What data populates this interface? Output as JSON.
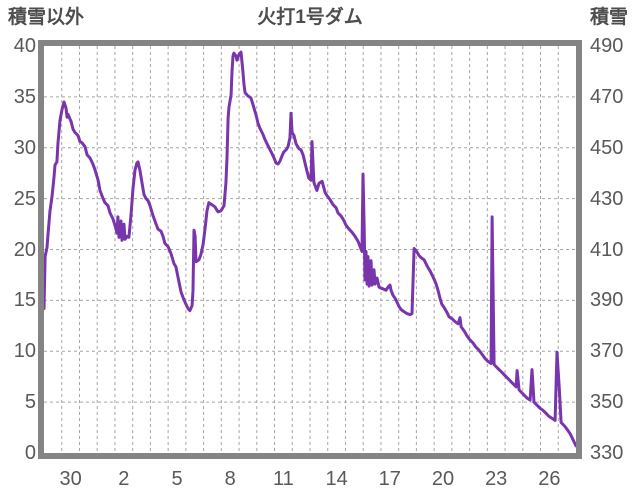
{
  "header": {
    "left_axis_title": "積雪以外",
    "title": "火打1号ダム",
    "right_axis_title": "積雪"
  },
  "chart_data": {
    "type": "line",
    "title": "火打1号ダム",
    "legend": "none",
    "grid": "dashed gray, vertical line each day, horizontal line each left-axis step",
    "x_axis": {
      "range_days": [
        0,
        30
      ],
      "gridline_interval_days": 1,
      "tick_labels": [
        "30",
        "2",
        "5",
        "8",
        "11",
        "14",
        "17",
        "20",
        "23",
        "26"
      ],
      "tick_label_center_days": [
        1.5,
        4.5,
        7.5,
        10.5,
        13.5,
        16.5,
        19.5,
        22.5,
        25.5,
        28.5
      ]
    },
    "y_axis_left": {
      "title": "積雪以外",
      "range": [
        0,
        40
      ],
      "tick_interval": 5,
      "ticks": [
        40,
        35,
        30,
        25,
        20,
        15,
        10,
        5,
        0
      ]
    },
    "y_axis_right": {
      "title": "積雪",
      "range": [
        330,
        490
      ],
      "tick_interval": 20,
      "ticks": [
        490,
        470,
        450,
        430,
        410,
        390,
        370,
        350,
        330
      ]
    },
    "series": [
      {
        "name": "積雪",
        "color": "#7935ac",
        "axis_note": "plotted values given in left-axis units; right axis equivalent = 330 + 4 × value",
        "points": [
          [
            0.0,
            14.2
          ],
          [
            0.06,
            19.3
          ],
          [
            0.17,
            20.2
          ],
          [
            0.23,
            21.6
          ],
          [
            0.34,
            23.8
          ],
          [
            0.45,
            25.2
          ],
          [
            0.56,
            27.0
          ],
          [
            0.62,
            28.3
          ],
          [
            0.73,
            28.6
          ],
          [
            0.79,
            30.5
          ],
          [
            0.9,
            32.7
          ],
          [
            1.02,
            33.8
          ],
          [
            1.13,
            34.5
          ],
          [
            1.24,
            33.9
          ],
          [
            1.3,
            33.0
          ],
          [
            1.35,
            33.3
          ],
          [
            1.47,
            32.8
          ],
          [
            1.52,
            32.6
          ],
          [
            1.64,
            31.8
          ],
          [
            1.75,
            31.5
          ],
          [
            1.92,
            31.2
          ],
          [
            2.03,
            30.6
          ],
          [
            2.14,
            30.5
          ],
          [
            2.31,
            30.1
          ],
          [
            2.43,
            29.3
          ],
          [
            2.59,
            29.0
          ],
          [
            2.76,
            28.4
          ],
          [
            2.88,
            27.8
          ],
          [
            3.05,
            26.8
          ],
          [
            3.16,
            25.8
          ],
          [
            3.33,
            25.0
          ],
          [
            3.44,
            24.6
          ],
          [
            3.61,
            24.3
          ],
          [
            3.72,
            23.6
          ],
          [
            3.89,
            23.0
          ],
          [
            4.0,
            22.4
          ],
          [
            4.12,
            21.6
          ],
          [
            4.17,
            23.2
          ],
          [
            4.23,
            21.2
          ],
          [
            4.34,
            22.8
          ],
          [
            4.4,
            20.9
          ],
          [
            4.51,
            22.5
          ],
          [
            4.57,
            21.0
          ],
          [
            4.68,
            21.3
          ],
          [
            4.79,
            21.2
          ],
          [
            4.91,
            23.5
          ],
          [
            5.02,
            26.0
          ],
          [
            5.13,
            27.8
          ],
          [
            5.24,
            28.5
          ],
          [
            5.3,
            28.6
          ],
          [
            5.41,
            27.8
          ],
          [
            5.53,
            26.5
          ],
          [
            5.64,
            25.4
          ],
          [
            5.75,
            25.0
          ],
          [
            5.87,
            24.8
          ],
          [
            5.98,
            24.3
          ],
          [
            6.15,
            23.3
          ],
          [
            6.32,
            22.5
          ],
          [
            6.43,
            22.0
          ],
          [
            6.6,
            21.8
          ],
          [
            6.71,
            21.3
          ],
          [
            6.82,
            20.6
          ],
          [
            6.99,
            20.3
          ],
          [
            7.16,
            19.6
          ],
          [
            7.33,
            18.6
          ],
          [
            7.44,
            18.3
          ],
          [
            7.61,
            16.8
          ],
          [
            7.73,
            15.8
          ],
          [
            7.84,
            15.3
          ],
          [
            8.01,
            14.6
          ],
          [
            8.12,
            14.2
          ],
          [
            8.23,
            14.0
          ],
          [
            8.35,
            14.5
          ],
          [
            8.4,
            16.0
          ],
          [
            8.46,
            21.9
          ],
          [
            8.52,
            21.3
          ],
          [
            8.57,
            18.8
          ],
          [
            8.74,
            19.0
          ],
          [
            8.85,
            19.5
          ],
          [
            8.97,
            20.5
          ],
          [
            9.08,
            22.0
          ],
          [
            9.19,
            23.8
          ],
          [
            9.3,
            24.6
          ],
          [
            9.47,
            24.4
          ],
          [
            9.64,
            24.2
          ],
          [
            9.81,
            23.7
          ],
          [
            9.98,
            23.8
          ],
          [
            10.15,
            24.3
          ],
          [
            10.26,
            26.5
          ],
          [
            10.32,
            29.0
          ],
          [
            10.38,
            32.9
          ],
          [
            10.43,
            34.0
          ],
          [
            10.55,
            35.2
          ],
          [
            10.6,
            37.5
          ],
          [
            10.66,
            39.0
          ],
          [
            10.71,
            39.3
          ],
          [
            10.83,
            39.0
          ],
          [
            10.88,
            38.6
          ],
          [
            11.0,
            39.2
          ],
          [
            11.11,
            39.4
          ],
          [
            11.22,
            37.4
          ],
          [
            11.28,
            36.2
          ],
          [
            11.34,
            35.4
          ],
          [
            11.5,
            35.1
          ],
          [
            11.67,
            34.9
          ],
          [
            11.79,
            34.2
          ],
          [
            11.96,
            33.2
          ],
          [
            12.07,
            32.4
          ],
          [
            12.18,
            31.9
          ],
          [
            12.35,
            31.3
          ],
          [
            12.46,
            30.8
          ],
          [
            12.63,
            30.2
          ],
          [
            12.75,
            29.8
          ],
          [
            12.86,
            29.4
          ],
          [
            12.97,
            29.0
          ],
          [
            13.08,
            28.5
          ],
          [
            13.2,
            28.4
          ],
          [
            13.31,
            28.7
          ],
          [
            13.42,
            29.2
          ],
          [
            13.53,
            29.6
          ],
          [
            13.65,
            29.8
          ],
          [
            13.76,
            30.1
          ],
          [
            13.87,
            31.0
          ],
          [
            13.93,
            33.4
          ],
          [
            13.99,
            31.5
          ],
          [
            14.1,
            31.2
          ],
          [
            14.21,
            30.4
          ],
          [
            14.38,
            29.9
          ],
          [
            14.49,
            29.8
          ],
          [
            14.61,
            29.3
          ],
          [
            14.72,
            28.5
          ],
          [
            14.83,
            27.7
          ],
          [
            14.94,
            27.0
          ],
          [
            15.06,
            26.8
          ],
          [
            15.11,
            30.6
          ],
          [
            15.22,
            26.6
          ],
          [
            15.39,
            25.8
          ],
          [
            15.51,
            26.5
          ],
          [
            15.68,
            26.7
          ],
          [
            15.85,
            25.6
          ],
          [
            15.96,
            25.3
          ],
          [
            16.13,
            24.9
          ],
          [
            16.3,
            24.4
          ],
          [
            16.47,
            24.1
          ],
          [
            16.58,
            23.6
          ],
          [
            16.75,
            23.3
          ],
          [
            16.86,
            23.0
          ],
          [
            17.03,
            22.4
          ],
          [
            17.2,
            22.0
          ],
          [
            17.37,
            21.7
          ],
          [
            17.54,
            21.3
          ],
          [
            17.71,
            20.8
          ],
          [
            17.82,
            20.3
          ],
          [
            17.93,
            19.8
          ],
          [
            17.99,
            27.4
          ],
          [
            18.05,
            22.5
          ],
          [
            18.1,
            17.0
          ],
          [
            18.16,
            19.8
          ],
          [
            18.22,
            16.6
          ],
          [
            18.27,
            19.3
          ],
          [
            18.33,
            16.4
          ],
          [
            18.44,
            18.9
          ],
          [
            18.5,
            16.5
          ],
          [
            18.61,
            18.0
          ],
          [
            18.67,
            16.6
          ],
          [
            18.78,
            17.2
          ],
          [
            18.89,
            16.3
          ],
          [
            19.01,
            16.2
          ],
          [
            19.17,
            16.1
          ],
          [
            19.29,
            16.0
          ],
          [
            19.4,
            16.3
          ],
          [
            19.51,
            16.5
          ],
          [
            19.57,
            16.0
          ],
          [
            19.68,
            15.5
          ],
          [
            19.8,
            15.2
          ],
          [
            19.91,
            14.8
          ],
          [
            20.02,
            14.4
          ],
          [
            20.13,
            14.1
          ],
          [
            20.3,
            13.9
          ],
          [
            20.47,
            13.7
          ],
          [
            20.64,
            13.6
          ],
          [
            20.75,
            13.7
          ],
          [
            20.87,
            20.1
          ],
          [
            20.98,
            19.9
          ],
          [
            21.15,
            19.4
          ],
          [
            21.26,
            19.2
          ],
          [
            21.43,
            19.0
          ],
          [
            21.54,
            18.6
          ],
          [
            21.66,
            18.2
          ],
          [
            21.77,
            17.9
          ],
          [
            21.88,
            17.5
          ],
          [
            21.99,
            17.1
          ],
          [
            22.11,
            16.6
          ],
          [
            22.22,
            16.0
          ],
          [
            22.33,
            15.2
          ],
          [
            22.44,
            14.6
          ],
          [
            22.56,
            14.3
          ],
          [
            22.73,
            13.8
          ],
          [
            22.84,
            13.4
          ],
          [
            23.01,
            13.2
          ],
          [
            23.18,
            12.9
          ],
          [
            23.35,
            12.7
          ],
          [
            23.46,
            13.3
          ],
          [
            23.52,
            12.4
          ],
          [
            23.69,
            12.0
          ],
          [
            23.86,
            11.5
          ],
          [
            24.03,
            11.1
          ],
          [
            24.2,
            10.8
          ],
          [
            24.36,
            10.4
          ],
          [
            24.53,
            10.1
          ],
          [
            24.7,
            9.7
          ],
          [
            24.87,
            9.3
          ],
          [
            25.04,
            9.0
          ],
          [
            25.21,
            8.8
          ],
          [
            25.27,
            23.2
          ],
          [
            25.38,
            8.7
          ],
          [
            25.49,
            8.5
          ],
          [
            25.66,
            8.2
          ],
          [
            25.83,
            7.9
          ],
          [
            26.0,
            7.6
          ],
          [
            26.17,
            7.3
          ],
          [
            26.34,
            7.0
          ],
          [
            26.51,
            6.7
          ],
          [
            26.62,
            6.5
          ],
          [
            26.68,
            8.1
          ],
          [
            26.79,
            6.2
          ],
          [
            26.9,
            6.0
          ],
          [
            27.07,
            5.7
          ],
          [
            27.24,
            5.4
          ],
          [
            27.41,
            5.2
          ],
          [
            27.52,
            8.2
          ],
          [
            27.63,
            5.0
          ],
          [
            27.8,
            4.7
          ],
          [
            27.97,
            4.4
          ],
          [
            28.14,
            4.2
          ],
          [
            28.31,
            3.9
          ],
          [
            28.48,
            3.6
          ],
          [
            28.65,
            3.4
          ],
          [
            28.82,
            3.2
          ],
          [
            28.93,
            9.9
          ],
          [
            29.05,
            6.5
          ],
          [
            29.16,
            3.0
          ],
          [
            29.38,
            2.6
          ],
          [
            29.55,
            2.2
          ],
          [
            29.67,
            1.9
          ],
          [
            29.78,
            1.5
          ],
          [
            29.89,
            1.1
          ],
          [
            30.0,
            0.7
          ]
        ]
      }
    ],
    "colors": {
      "line": "#7935ac",
      "plot_border": "#848484",
      "gridline": "#a6a6a6",
      "tick_text": "#595959",
      "title_text": "#4d4d4d",
      "background": "#ffffff"
    }
  }
}
